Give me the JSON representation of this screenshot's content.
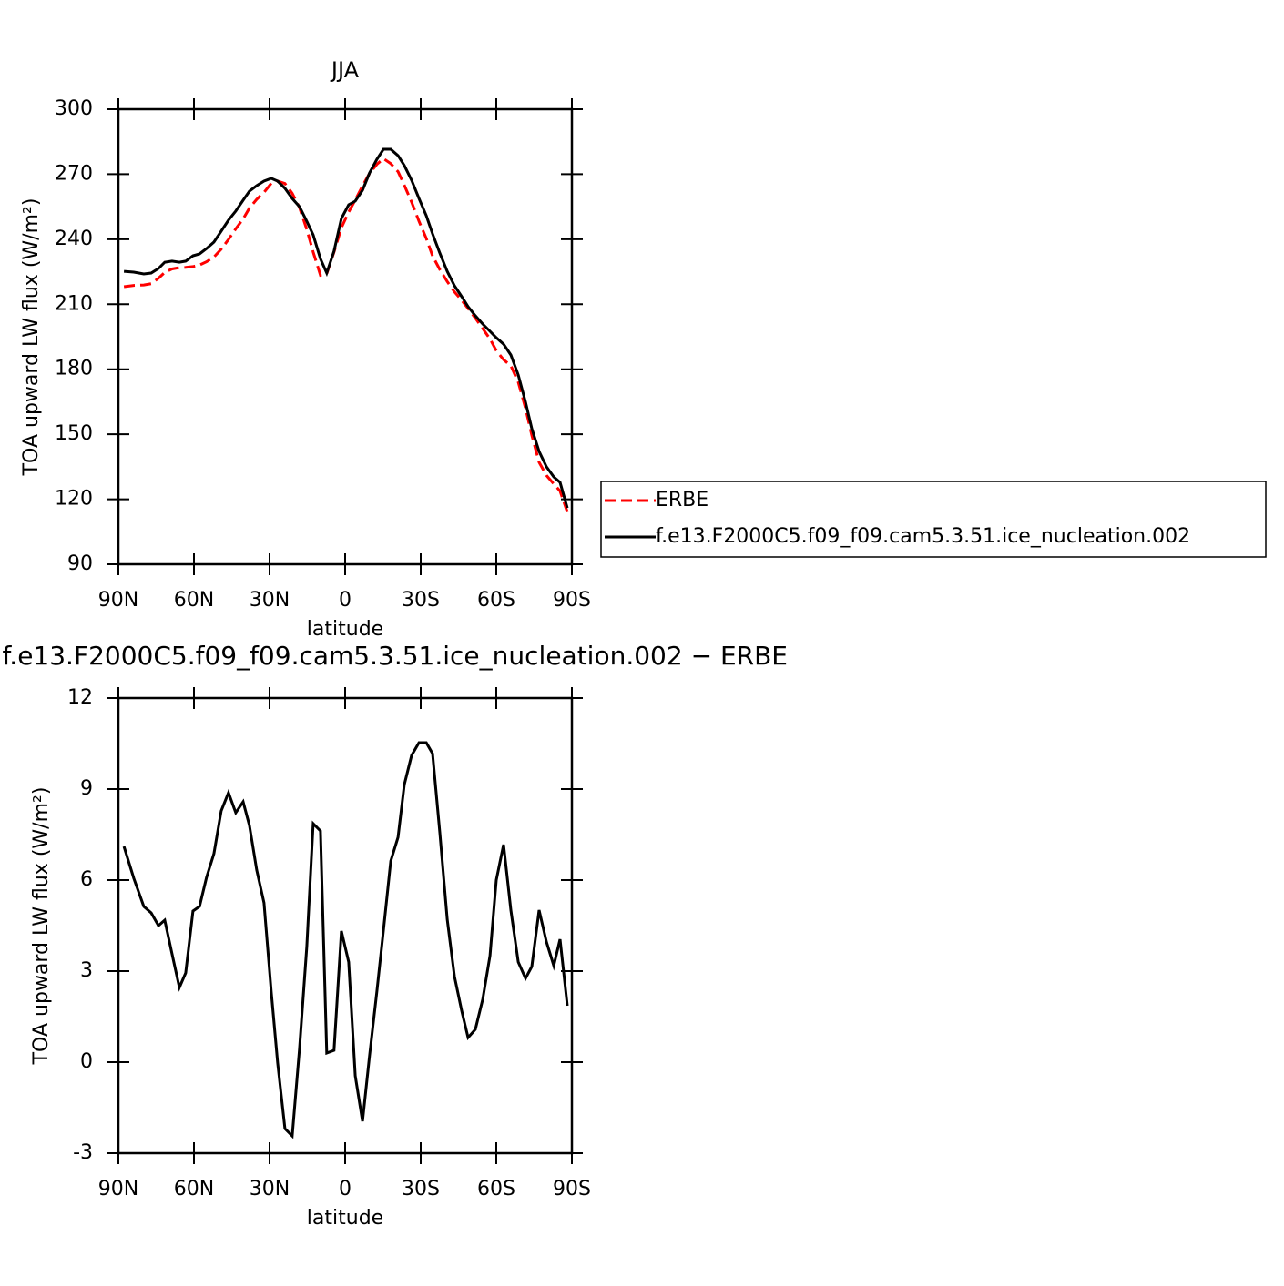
{
  "chart_data": [
    {
      "type": "line",
      "title": "JJA",
      "xlabel": "latitude",
      "ylabel": "TOA upward LW flux (W/m²)",
      "x": [
        87.8,
        83.9,
        79.9,
        77.0,
        74.1,
        71.6,
        68.7,
        65.8,
        63.3,
        60.4,
        57.8,
        55.0,
        52.1,
        49.2,
        46.3,
        43.4,
        40.5,
        38.0,
        35.1,
        32.2,
        29.3,
        26.8,
        23.9,
        21.0,
        18.1,
        15.2,
        12.7,
        9.8,
        7.3,
        4.4,
        1.5,
        -1.4,
        -4.0,
        -6.9,
        -9.7,
        -12.6,
        -15.2,
        -18.1,
        -21.0,
        -23.5,
        -26.4,
        -29.3,
        -32.2,
        -34.7,
        -37.6,
        -40.5,
        -43.4,
        -46.3,
        -48.8,
        -51.7,
        -54.6,
        -57.5,
        -60.0,
        -62.9,
        -65.8,
        -68.7,
        -71.6,
        -74.1,
        -77.0,
        -79.9,
        -82.8,
        -85.3,
        -88.2
      ],
      "series": [
        {
          "name": "ERBE",
          "color": "#ff0000",
          "dash": "dashed",
          "values": [
            218.1,
            218.7,
            218.9,
            219.5,
            222.0,
            224.7,
            226.3,
            226.9,
            227.0,
            227.4,
            228.1,
            229.6,
            231.8,
            235.4,
            239.9,
            244.8,
            249.4,
            254.4,
            258.4,
            261.6,
            265.8,
            266.8,
            265.7,
            261.2,
            254.6,
            244.5,
            234.1,
            223.4,
            224.1,
            234.1,
            245.3,
            252.6,
            258.1,
            264.6,
            270.4,
            274.6,
            277.2,
            274.9,
            271.2,
            264.9,
            257.1,
            248.3,
            240.4,
            232.3,
            226.0,
            220.5,
            215.7,
            211.8,
            208.1,
            203.6,
            198.8,
            194.0,
            188.6,
            184.4,
            181.6,
            174.1,
            162.0,
            149.5,
            137.1,
            131.0,
            127.1,
            123.8,
            114.1
          ]
        },
        {
          "name": "f.e13.F2000C5.f09_f09.cam5.3.51.ice_nucleation.002",
          "color": "#000000",
          "dash": "solid",
          "values": [
            225.2,
            224.8,
            224,
            224.4,
            226.5,
            229.4,
            229.9,
            229.4,
            229.9,
            232.4,
            233.2,
            235.7,
            238.7,
            243.7,
            248.8,
            253,
            258,
            262.2,
            264.7,
            266.8,
            268.1,
            266.8,
            263.5,
            258.8,
            255,
            248.3,
            242,
            231,
            224.4,
            234.5,
            249.6,
            255.9,
            257.6,
            262.6,
            270.6,
            276.9,
            281.5,
            281.5,
            278.6,
            274,
            267.2,
            258.8,
            250.9,
            242.5,
            233.6,
            225.2,
            218.5,
            213.5,
            208.9,
            204.7,
            200.9,
            197.5,
            194.6,
            191.6,
            186.6,
            177.4,
            164.8,
            152.6,
            142.1,
            135,
            130.3,
            127.8,
            116
          ]
        }
      ],
      "xlim": [
        90,
        -90
      ],
      "xticks": [
        {
          "value": 90,
          "label": "90N"
        },
        {
          "value": 60,
          "label": "60N"
        },
        {
          "value": 30,
          "label": "30N"
        },
        0,
        {
          "value": -30,
          "label": "30S"
        },
        {
          "value": -60,
          "label": "60S"
        },
        {
          "value": -90,
          "label": "90S"
        }
      ],
      "ylim": [
        90,
        300
      ],
      "yticks": [
        90,
        120,
        150,
        180,
        210,
        240,
        270,
        300
      ],
      "legend": "right"
    },
    {
      "type": "line",
      "title": "f.e13.F2000C5.f09_f09.cam5.3.51.ice_nucleation.002 − ERBE",
      "xlabel": "latitude",
      "ylabel": "TOA upward LW flux (W/m²)",
      "x": [
        87.8,
        83.9,
        79.9,
        77.0,
        74.1,
        71.6,
        68.7,
        65.8,
        63.3,
        60.4,
        57.8,
        55.0,
        52.1,
        49.2,
        46.3,
        43.4,
        40.5,
        38.0,
        35.1,
        32.2,
        29.3,
        26.8,
        23.9,
        21.0,
        18.1,
        15.2,
        12.7,
        9.8,
        7.3,
        4.4,
        1.5,
        -1.4,
        -4.0,
        -6.9,
        -9.7,
        -12.6,
        -15.2,
        -18.1,
        -21.0,
        -23.5,
        -26.4,
        -29.3,
        -32.2,
        -34.7,
        -37.6,
        -40.5,
        -43.4,
        -46.3,
        -48.8,
        -51.7,
        -54.6,
        -57.5,
        -60.0,
        -62.9,
        -65.8,
        -68.7,
        -71.6,
        -74.1,
        -77.0,
        -79.9,
        -82.8,
        -85.3,
        -88.2
      ],
      "series": [
        {
          "color": "#000000",
          "dash": "solid",
          "values": [
            7.11,
            6.06,
            5.13,
            4.92,
            4.5,
            4.68,
            3.57,
            2.46,
            2.94,
            4.98,
            5.13,
            6.09,
            6.87,
            8.28,
            8.88,
            8.22,
            8.58,
            7.8,
            6.33,
            5.25,
            2.31,
            -0.03,
            -2.19,
            -2.43,
            0.45,
            3.81,
            7.86,
            7.62,
            0.3,
            0.39,
            4.32,
            3.3,
            -0.45,
            -1.95,
            0.21,
            2.34,
            4.35,
            6.63,
            7.41,
            9.15,
            10.11,
            10.53,
            10.53,
            10.17,
            7.56,
            4.71,
            2.82,
            1.68,
            0.81,
            1.08,
            2.07,
            3.51,
            6.0,
            7.17,
            5.01,
            3.3,
            2.76,
            3.15,
            5.01,
            3.96,
            3.18,
            4.05,
            1.86
          ]
        }
      ],
      "xlim": [
        90,
        -90
      ],
      "xticks": [
        {
          "value": 90,
          "label": "90N"
        },
        {
          "value": 60,
          "label": "60N"
        },
        {
          "value": 30,
          "label": "30N"
        },
        0,
        {
          "value": -30,
          "label": "30S"
        },
        {
          "value": -60,
          "label": "60S"
        },
        {
          "value": -90,
          "label": "90S"
        }
      ],
      "ylim": [
        -3,
        12
      ],
      "yticks": [
        -3,
        0,
        3,
        6,
        9,
        12
      ]
    }
  ]
}
